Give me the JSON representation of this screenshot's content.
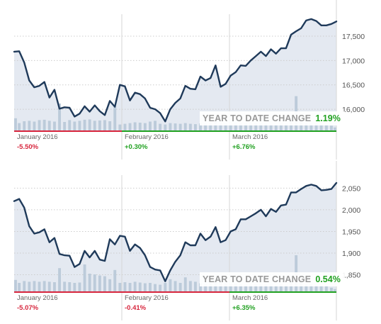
{
  "colors": {
    "line": "#1f3a5a",
    "area": "#e4e9f1",
    "volume": "#bccbda",
    "grid": "#cccccc",
    "negative": "#d7263d",
    "positive": "#21a121"
  },
  "chart_data": [
    {
      "type": "line",
      "ylim": [
        15550,
        17950
      ],
      "yticks": [
        16000,
        16500,
        17000,
        17500
      ],
      "ytick_labels": [
        "16,000",
        "16,500",
        "17,000",
        "17,500"
      ],
      "grid": true,
      "series": [
        {
          "values": [
            17180,
            17190,
            16960,
            16590,
            16450,
            16480,
            16560,
            16240,
            16400,
            16010,
            16040,
            16030,
            15850,
            15910,
            16060,
            15950,
            16080,
            15960,
            15880,
            16170,
            16050,
            16500,
            16470,
            16180,
            16340,
            16310,
            16220,
            16030,
            16000,
            15920,
            15750,
            16000,
            16130,
            16220,
            16480,
            16420,
            16410,
            16670,
            16590,
            16640,
            16900,
            16460,
            16520,
            16690,
            16760,
            16900,
            16890,
            17000,
            17090,
            17180,
            17090,
            17230,
            17140,
            17250,
            17250,
            17530,
            17600,
            17660,
            17820,
            17850,
            17810,
            17720,
            17720,
            17750,
            17800
          ]
        }
      ],
      "volume": [
        0.35,
        0.22,
        0.27,
        0.28,
        0.26,
        0.3,
        0.31,
        0.28,
        0.26,
        0.75,
        0.25,
        0.3,
        0.26,
        0.28,
        0.31,
        0.32,
        0.28,
        0.29,
        0.3,
        0.27,
        0.66,
        0.18,
        0.2,
        0.22,
        0.24,
        0.23,
        0.22,
        0.26,
        0.28,
        0.2,
        0.18,
        0.22,
        0.21,
        0.2,
        0.22,
        0.2,
        0.19,
        0.21,
        0.2,
        0.22,
        0.3,
        0.22,
        0.21,
        0.19,
        0.2,
        0.22,
        0.21,
        0.2,
        0.22,
        0.21,
        0.2,
        0.19,
        0.18,
        0.21,
        0.2,
        0.35,
        0.95,
        0.3,
        0.22,
        0.2,
        0.21,
        0.19,
        0.18,
        0.15,
        0.1
      ],
      "months": [
        {
          "label": "January 2016",
          "change": "-5.50%",
          "sign": "negative"
        },
        {
          "label": "February 2016",
          "change": "+0.30%",
          "sign": "positive"
        },
        {
          "label": "March 2016",
          "change": "+6.76%",
          "sign": "positive"
        }
      ],
      "ytd": {
        "label": "YEAR TO DATE CHANGE",
        "value": "1.19%"
      }
    },
    {
      "type": "line",
      "ylim": [
        1810,
        2080
      ],
      "yticks": [
        1850,
        1900,
        1950,
        2000,
        2050
      ],
      "ytick_labels": [
        "1,850",
        "1,900",
        "1,950",
        "2,000",
        "2,050"
      ],
      "grid": true,
      "series": [
        {
          "values": [
            2020,
            2025,
            2005,
            1962,
            1945,
            1948,
            1955,
            1925,
            1935,
            1898,
            1895,
            1894,
            1868,
            1875,
            1905,
            1890,
            1905,
            1885,
            1882,
            1932,
            1920,
            1940,
            1938,
            1905,
            1920,
            1912,
            1895,
            1868,
            1862,
            1860,
            1835,
            1860,
            1880,
            1895,
            1925,
            1918,
            1918,
            1945,
            1930,
            1938,
            1960,
            1925,
            1930,
            1950,
            1955,
            1978,
            1978,
            1985,
            1992,
            2000,
            1985,
            2002,
            1995,
            2010,
            2012,
            2040,
            2040,
            2048,
            2055,
            2058,
            2055,
            2045,
            2046,
            2048,
            2062
          ]
        }
      ],
      "volume": [
        0.33,
        0.25,
        0.3,
        0.28,
        0.3,
        0.28,
        0.3,
        0.28,
        0.27,
        0.65,
        0.28,
        0.27,
        0.25,
        0.26,
        0.75,
        0.5,
        0.48,
        0.45,
        0.43,
        0.35,
        0.6,
        0.25,
        0.27,
        0.25,
        0.28,
        0.26,
        0.24,
        0.25,
        0.22,
        0.2,
        0.25,
        0.35,
        0.3,
        0.25,
        0.4,
        0.3,
        0.28,
        0.24,
        0.22,
        0.24,
        0.3,
        0.26,
        0.24,
        0.22,
        0.23,
        0.21,
        0.2,
        0.19,
        0.22,
        0.2,
        0.21,
        0.2,
        0.19,
        0.22,
        0.2,
        0.3,
        1.0,
        0.3,
        0.22,
        0.21,
        0.2,
        0.19,
        0.18,
        0.12,
        0.08
      ],
      "months": [
        {
          "label": "January 2016",
          "change": "-5.07%",
          "sign": "negative"
        },
        {
          "label": "February 2016",
          "change": "-0.41%",
          "sign": "negative"
        },
        {
          "label": "March 2016",
          "change": "+6.35%",
          "sign": "positive"
        }
      ],
      "ytd": {
        "label": "YEAR TO DATE CHANGE",
        "value": "0.54%"
      }
    }
  ]
}
